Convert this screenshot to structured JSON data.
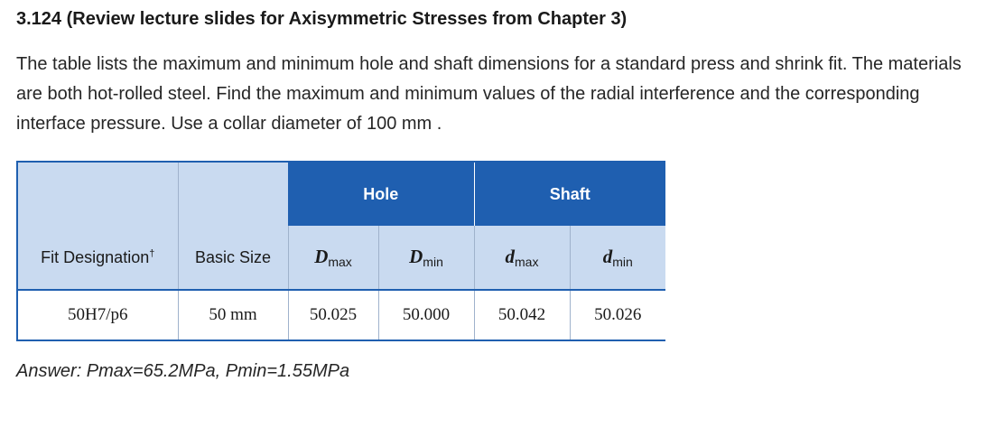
{
  "title": "3.124 (Review lecture slides for Axisymmetric Stresses from Chapter 3)",
  "paragraph": "The table lists the maximum and minimum hole and shaft dimensions for a standard press and shrink fit. The materials are both hot-rolled steel. Find the maximum and minimum values of the radial interference and the corresponding interface pressure. Use a collar diameter of 100 mm .",
  "table": {
    "group_hole": "Hole",
    "group_shaft": "Shaft",
    "col_fit": "Fit Designation",
    "col_fit_mark": "†",
    "col_basic": "Basic Size",
    "dmax_sym": "D",
    "dmax_sub": "max",
    "dmin_sym": "D",
    "dmin_sub": "min",
    "smax_sym": "d",
    "smax_sub": "max",
    "smin_sym": "d",
    "smin_sub": "min",
    "row": {
      "fit": "50H7/p6",
      "basic": "50 mm",
      "Dmax": "50.025",
      "Dmin": "50.000",
      "dmax": "50.042",
      "dmin": "50.026"
    }
  },
  "answer": "Answer: Pmax=65.2MPa, Pmin=1.55MPa"
}
